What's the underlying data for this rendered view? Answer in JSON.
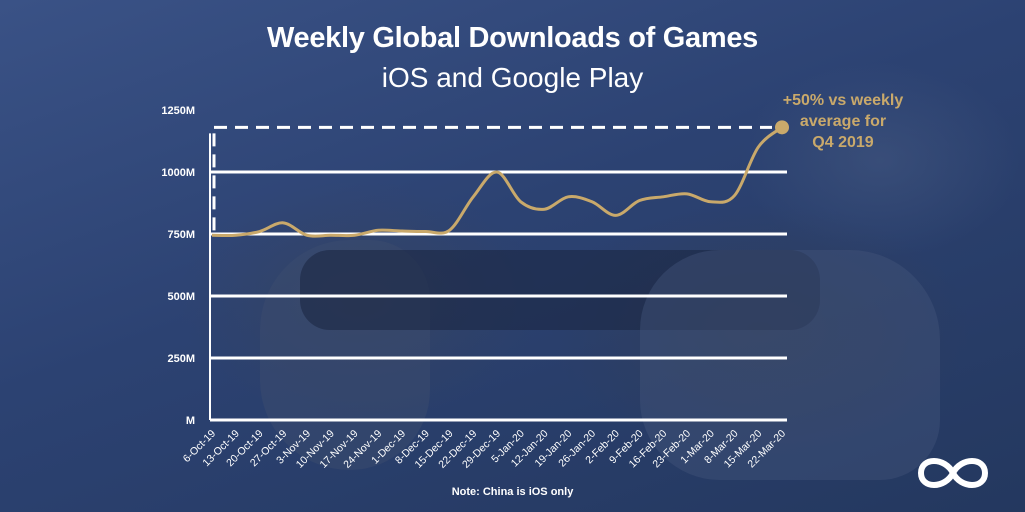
{
  "chart_data": {
    "type": "line",
    "title": "Weekly Global Downloads of Games",
    "subtitle": "iOS and Google Play",
    "xlabel": "",
    "ylabel": "",
    "y_ticks": [
      {
        "value": 0,
        "label": "M"
      },
      {
        "value": 250,
        "label": "250M"
      },
      {
        "value": 500,
        "label": "500M"
      },
      {
        "value": 750,
        "label": "750M"
      },
      {
        "value": 1000,
        "label": "1000M"
      },
      {
        "value": 1250,
        "label": "1250M"
      }
    ],
    "ylim": [
      0,
      1250
    ],
    "grid": true,
    "x": [
      "6-Oct-19",
      "13-Oct-19",
      "20-Oct-19",
      "27-Oct-19",
      "3-Nov-19",
      "10-Nov-19",
      "17-Nov-19",
      "24-Nov-19",
      "1-Dec-19",
      "8-Dec-19",
      "15-Dec-19",
      "22-Dec-19",
      "29-Dec-19",
      "5-Jan-20",
      "12-Jan-20",
      "19-Jan-20",
      "26-Jan-20",
      "2-Feb-20",
      "9-Feb-20",
      "16-Feb-20",
      "23-Feb-20",
      "1-Mar-20",
      "8-Mar-20",
      "15-Mar-20",
      "22-Mar-20"
    ],
    "series": [
      {
        "values": [
          745,
          745,
          760,
          795,
          745,
          745,
          745,
          765,
          762,
          760,
          765,
          900,
          1000,
          880,
          850,
          900,
          880,
          825,
          885,
          900,
          912,
          880,
          905,
          1100,
          1180
        ]
      }
    ],
    "reference_line": {
      "value": 1180,
      "style": "dashed"
    },
    "annotation": [
      "+50% vs weekly",
      "average for",
      "Q4 2019"
    ]
  },
  "note": "Note: China is iOS only",
  "colors": {
    "line": "#c9a96b",
    "grid": "#ffffff",
    "text": "#ffffff",
    "annotation": "#c9a96b"
  },
  "logo": {
    "icon": "infinity-loop-icon"
  }
}
